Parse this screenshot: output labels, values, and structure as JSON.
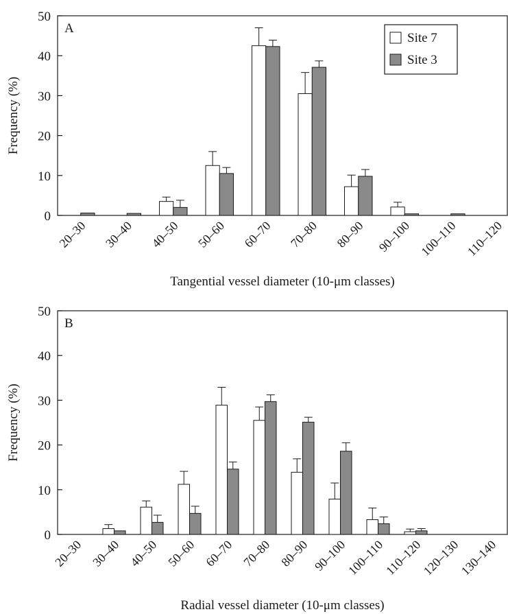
{
  "chart_data": [
    {
      "type": "bar",
      "panel_label": "A",
      "title": "",
      "xlabel": "Tangential vessel diameter (10-μm classes)",
      "ylabel": "Frequency (%)",
      "ylim": [
        0,
        50
      ],
      "yticks": [
        0,
        10,
        20,
        30,
        40,
        50
      ],
      "grid": false,
      "legend_position": "top-right",
      "categories": [
        "20–30",
        "30–40",
        "40–50",
        "50–60",
        "60–70",
        "70–80",
        "80–90",
        "90–100",
        "100–110",
        "110–120"
      ],
      "series": [
        {
          "name": "Site 7",
          "color": "#ffffff",
          "values": [
            0,
            0,
            3.5,
            12.5,
            42.5,
            30.5,
            7.2,
            2.1,
            0,
            0
          ],
          "errors": [
            0,
            0,
            1.1,
            3.5,
            4.5,
            5.3,
            2.9,
            1.2,
            0,
            0
          ]
        },
        {
          "name": "Site 3",
          "color": "#8a8a8a",
          "values": [
            0.6,
            0.5,
            2.0,
            10.5,
            42.3,
            37.1,
            9.8,
            0.4,
            0.4,
            0
          ],
          "errors": [
            0,
            0,
            1.8,
            1.5,
            1.6,
            1.6,
            1.7,
            0,
            0,
            0
          ]
        }
      ]
    },
    {
      "type": "bar",
      "panel_label": "B",
      "title": "",
      "xlabel": "Radial vessel diameter (10-μm classes)",
      "ylabel": "Frequency (%)",
      "ylim": [
        0,
        50
      ],
      "yticks": [
        0,
        10,
        20,
        30,
        40,
        50
      ],
      "grid": false,
      "categories": [
        "20–30",
        "30–40",
        "40–50",
        "50–60",
        "60–70",
        "70–80",
        "80–90",
        "90–100",
        "100–110",
        "110–120",
        "120–130",
        "130–140"
      ],
      "series": [
        {
          "name": "Site 7",
          "color": "#ffffff",
          "values": [
            0,
            1.3,
            6.1,
            11.2,
            28.9,
            25.5,
            13.9,
            7.9,
            3.3,
            0.6,
            0,
            0
          ],
          "errors": [
            0,
            0.9,
            1.4,
            2.9,
            4.0,
            3.0,
            3.0,
            3.6,
            2.6,
            0.6,
            0,
            0
          ]
        },
        {
          "name": "Site 3",
          "color": "#8a8a8a",
          "values": [
            0,
            0.8,
            2.7,
            4.7,
            14.6,
            29.7,
            25.1,
            18.6,
            2.4,
            0.8,
            0,
            0
          ],
          "errors": [
            0,
            0,
            1.6,
            1.6,
            1.6,
            1.5,
            1.1,
            1.9,
            1.5,
            0.5,
            0,
            0
          ]
        }
      ]
    }
  ]
}
